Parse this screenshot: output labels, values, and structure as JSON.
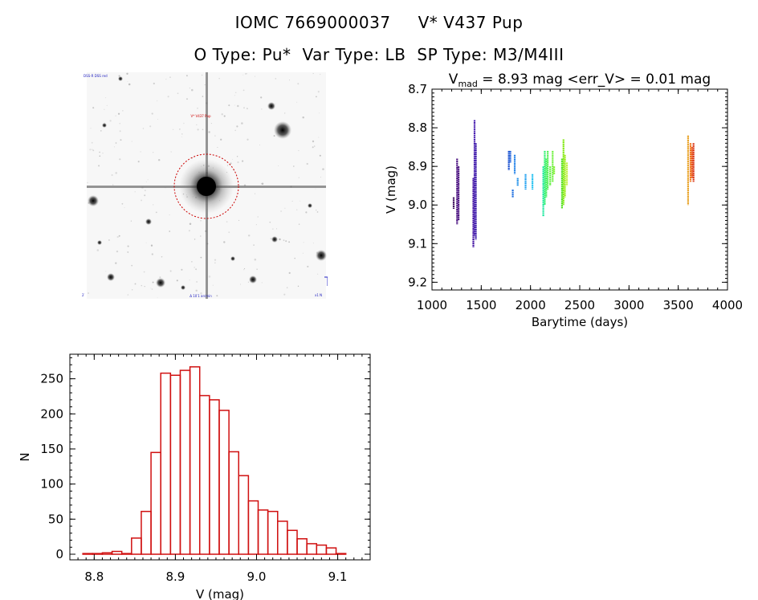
{
  "header": {
    "star_id": "IOMC 7669000037",
    "star_name": "V* V437 Pup",
    "object_type": "O Type: Pu*",
    "var_type": "Var Type: LB",
    "sp_type": "SP Type: M3/M4III"
  },
  "chart_data": [
    {
      "type": "scatter",
      "title_parts": {
        "v": "V",
        "sub": "mad",
        "rest": " = 8.93 mag <err_V> = 0.01 mag"
      },
      "xlabel": "Barytime (days)",
      "ylabel": "V (mag)",
      "xlim": [
        1000,
        4000
      ],
      "ylim": [
        9.22,
        8.7
      ],
      "xticks": [
        1000,
        1500,
        2000,
        2500,
        3000,
        3500,
        4000
      ],
      "yticks": [
        8.7,
        8.8,
        8.9,
        9.0,
        9.1,
        9.2
      ],
      "ytick_labels": [
        "8.7",
        "8.8",
        "8.9",
        "9.0",
        "9.1",
        "9.2"
      ],
      "segments": [
        {
          "x": 1220,
          "ymin": 8.98,
          "ymax": 9.01,
          "color": "#3a0a5a"
        },
        {
          "x": 1255,
          "ymin": 8.88,
          "ymax": 9.05,
          "color": "#4a1080"
        },
        {
          "x": 1270,
          "ymin": 8.9,
          "ymax": 9.04,
          "color": "#4a1080"
        },
        {
          "x": 1420,
          "ymin": 8.93,
          "ymax": 9.11,
          "color": "#4010a0"
        },
        {
          "x": 1432,
          "ymin": 8.78,
          "ymax": 9.08,
          "color": "#4a20b0"
        },
        {
          "x": 1445,
          "ymin": 8.84,
          "ymax": 9.09,
          "color": "#3a18a8"
        },
        {
          "x": 1780,
          "ymin": 8.86,
          "ymax": 8.91,
          "color": "#1a50d0"
        },
        {
          "x": 1795,
          "ymin": 8.86,
          "ymax": 8.89,
          "color": "#2060d8"
        },
        {
          "x": 1820,
          "ymin": 8.96,
          "ymax": 8.98,
          "color": "#2070e0"
        },
        {
          "x": 1840,
          "ymin": 8.87,
          "ymax": 8.92,
          "color": "#2080e8"
        },
        {
          "x": 1870,
          "ymin": 8.93,
          "ymax": 8.95,
          "color": "#2090e8"
        },
        {
          "x": 1950,
          "ymin": 8.92,
          "ymax": 8.96,
          "color": "#20a0f0"
        },
        {
          "x": 2020,
          "ymin": 8.92,
          "ymax": 8.96,
          "color": "#20c0f0"
        },
        {
          "x": 2130,
          "ymin": 8.9,
          "ymax": 9.03,
          "color": "#20e8a0"
        },
        {
          "x": 2145,
          "ymin": 8.86,
          "ymax": 9.0,
          "color": "#30f070"
        },
        {
          "x": 2160,
          "ymin": 8.88,
          "ymax": 8.98,
          "color": "#40f060"
        },
        {
          "x": 2175,
          "ymin": 8.86,
          "ymax": 8.96,
          "color": "#50f050"
        },
        {
          "x": 2200,
          "ymin": 8.9,
          "ymax": 8.95,
          "color": "#60f040"
        },
        {
          "x": 2225,
          "ymin": 8.86,
          "ymax": 8.94,
          "color": "#70f040"
        },
        {
          "x": 2240,
          "ymin": 8.9,
          "ymax": 8.92,
          "color": "#80f030"
        },
        {
          "x": 2320,
          "ymin": 8.88,
          "ymax": 9.01,
          "color": "#50e020"
        },
        {
          "x": 2335,
          "ymin": 8.83,
          "ymax": 9.0,
          "color": "#80e810"
        },
        {
          "x": 2350,
          "ymin": 8.87,
          "ymax": 8.98,
          "color": "#a0ec20"
        },
        {
          "x": 2370,
          "ymin": 8.89,
          "ymax": 8.95,
          "color": "#c0f040"
        },
        {
          "x": 3600,
          "ymin": 8.82,
          "ymax": 9.0,
          "color": "#e8a020"
        },
        {
          "x": 3625,
          "ymin": 8.84,
          "ymax": 8.94,
          "color": "#f07010"
        },
        {
          "x": 3640,
          "ymin": 8.85,
          "ymax": 8.93,
          "color": "#e85010"
        },
        {
          "x": 3655,
          "ymin": 8.84,
          "ymax": 8.94,
          "color": "#d83010"
        }
      ]
    },
    {
      "type": "bar",
      "xlabel": "V (mag)",
      "ylabel": "N",
      "xlim": [
        8.77,
        9.14
      ],
      "ylim": [
        -8,
        285
      ],
      "xticks": [
        8.8,
        8.9,
        9.0,
        9.1
      ],
      "xtick_labels": [
        "8.8",
        "8.9",
        "9.0",
        "9.1"
      ],
      "yticks": [
        0,
        50,
        100,
        150,
        200,
        250
      ],
      "bin_start": 8.786,
      "bin_width": 0.012,
      "values": [
        1,
        1,
        2,
        4,
        1,
        23,
        61,
        145,
        258,
        255,
        262,
        267,
        226,
        220,
        205,
        146,
        112,
        76,
        63,
        61,
        47,
        34,
        22,
        15,
        13,
        9,
        1
      ]
    }
  ],
  "finding_chart": {
    "star_label": "V* V437 Pup",
    "corner_tl": "DSS-R DSS red",
    "corner_bl": "2′",
    "corner_bc": "Δ 10′1 arcmin",
    "corner_br": "x1 N"
  },
  "colors": {
    "axis": "#000000",
    "hist": "#d01010",
    "circle": "#cc0000"
  }
}
